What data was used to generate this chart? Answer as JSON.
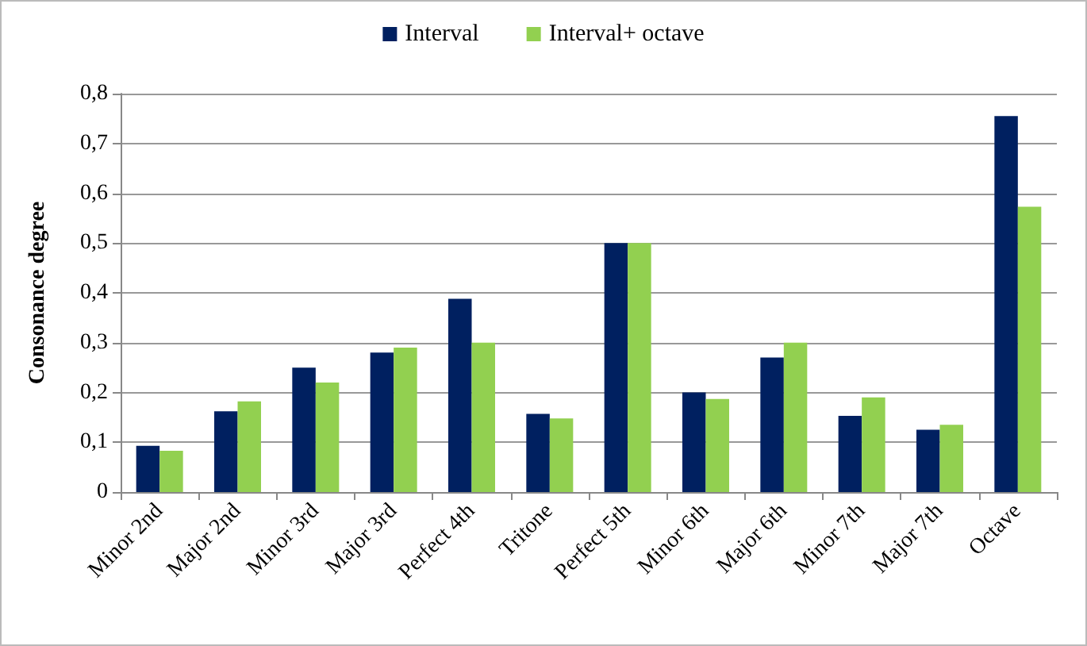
{
  "chart_data": {
    "type": "bar",
    "ylabel": "Consonance degree",
    "categories": [
      "Minor 2nd",
      "Major 2nd",
      "Minor 3rd",
      "Major 3rd",
      "Perfect 4th",
      "Tritone",
      "Perfect 5th",
      "Minor 6th",
      "Major 6th",
      "Minor 7th",
      "Major 7th",
      "Octave"
    ],
    "series": [
      {
        "name": "Interval",
        "color": "#002060",
        "values": [
          0.093,
          0.162,
          0.25,
          0.28,
          0.388,
          0.157,
          0.5,
          0.2,
          0.27,
          0.153,
          0.125,
          0.755
        ]
      },
      {
        "name": "Interval+ octave",
        "color": "#92d050",
        "values": [
          0.083,
          0.182,
          0.22,
          0.29,
          0.3,
          0.148,
          0.5,
          0.187,
          0.3,
          0.19,
          0.135,
          0.573
        ]
      }
    ],
    "ylim": [
      0,
      0.8
    ],
    "yticks": [
      {
        "value": 0,
        "label": "0"
      },
      {
        "value": 0.1,
        "label": "0,1"
      },
      {
        "value": 0.2,
        "label": "0,2"
      },
      {
        "value": 0.3,
        "label": "0,3"
      },
      {
        "value": 0.4,
        "label": "0,4"
      },
      {
        "value": 0.5,
        "label": "0,5"
      },
      {
        "value": 0.6,
        "label": "0,6"
      },
      {
        "value": 0.7,
        "label": "0,7"
      },
      {
        "value": 0.8,
        "label": "0,8"
      }
    ],
    "grid": "y",
    "legend": "top"
  }
}
